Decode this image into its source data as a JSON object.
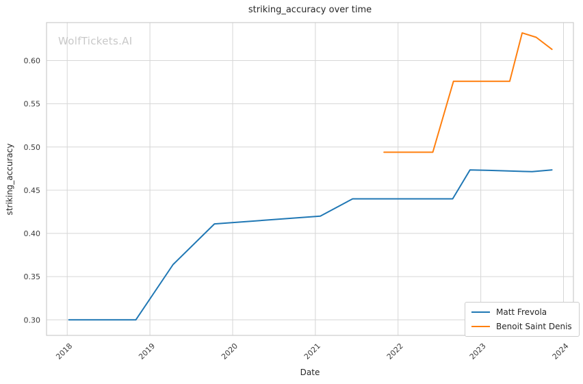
{
  "chart": {
    "title": "striking_accuracy over time",
    "watermark": "WolfTickets.AI",
    "xlabel": "Date",
    "ylabel": "striking_accuracy"
  },
  "legend": {
    "items": [
      {
        "label": "Matt Frevola",
        "color": "#1f77b4"
      },
      {
        "label": "Benoit Saint Denis",
        "color": "#ff7f0e"
      }
    ]
  },
  "chart_data": {
    "type": "line",
    "title": "striking_accuracy over time",
    "xlabel": "Date",
    "ylabel": "striking_accuracy",
    "grid": true,
    "legend_position": "lower right",
    "xlim": [
      2017.75,
      2024.12
    ],
    "ylim": [
      0.282,
      0.644
    ],
    "x_ticks": [
      2018,
      2019,
      2020,
      2021,
      2022,
      2023,
      2024
    ],
    "x_tick_labels": [
      "2018",
      "2019",
      "2020",
      "2021",
      "2022",
      "2023",
      "2024"
    ],
    "y_ticks": [
      0.3,
      0.35,
      0.4,
      0.45,
      0.5,
      0.55,
      0.6
    ],
    "y_tick_labels": [
      "0.30",
      "0.35",
      "0.40",
      "0.45",
      "0.50",
      "0.55",
      "0.60"
    ],
    "series": [
      {
        "name": "Matt Frevola",
        "color": "#1f77b4",
        "points": [
          [
            2018.02,
            0.3
          ],
          [
            2018.83,
            0.3
          ],
          [
            2019.28,
            0.364
          ],
          [
            2019.78,
            0.411
          ],
          [
            2021.06,
            0.42
          ],
          [
            2021.45,
            0.44
          ],
          [
            2022.66,
            0.44
          ],
          [
            2022.87,
            0.4735
          ],
          [
            2023.1,
            0.473
          ],
          [
            2023.62,
            0.4715
          ],
          [
            2023.86,
            0.4735
          ]
        ]
      },
      {
        "name": "Benoit Saint Denis",
        "color": "#ff7f0e",
        "points": [
          [
            2021.83,
            0.494
          ],
          [
            2022.42,
            0.494
          ],
          [
            2022.67,
            0.576
          ],
          [
            2023.35,
            0.576
          ],
          [
            2023.5,
            0.632
          ],
          [
            2023.67,
            0.627
          ],
          [
            2023.86,
            0.613
          ]
        ]
      }
    ]
  }
}
